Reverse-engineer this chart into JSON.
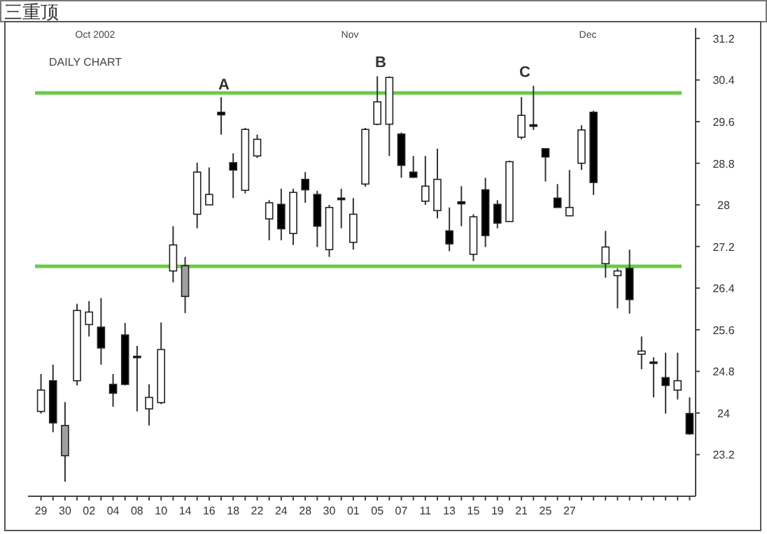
{
  "chart_data": {
    "type": "candlestick",
    "title": "三重顶",
    "subtitle": "DAILY CHART",
    "annotations": [
      "Oct 2002",
      "Nov",
      "Dec",
      "A",
      "B",
      "C"
    ],
    "categories": [
      "29",
      null,
      "30",
      null,
      "02",
      null,
      "04",
      null,
      "08",
      null,
      "10",
      null,
      "14",
      null,
      "16",
      null,
      "18",
      null,
      "22",
      null,
      "24",
      null,
      "28",
      null,
      "30",
      null,
      "01",
      null,
      "05",
      null,
      "07",
      null,
      "11",
      null,
      "13",
      null,
      "15",
      null,
      "19",
      null,
      "21",
      null,
      "25",
      null,
      "27",
      null,
      null,
      null,
      null,
      null,
      null,
      null,
      null,
      null,
      null
    ],
    "ohlc": [
      [
        24.03,
        24.75,
        23.99,
        24.44
      ],
      [
        24.62,
        24.93,
        23.63,
        23.81
      ],
      [
        23.18,
        24.21,
        22.68,
        23.76
      ],
      [
        24.62,
        26.1,
        24.53,
        25.97
      ],
      [
        25.7,
        26.15,
        25.47,
        25.94
      ],
      [
        25.65,
        26.21,
        24.93,
        25.25
      ],
      [
        24.55,
        24.75,
        24.12,
        24.38
      ],
      [
        25.5,
        25.73,
        24.53,
        24.55
      ],
      [
        25.09,
        25.29,
        24.03,
        25.07
      ],
      [
        24.08,
        24.55,
        23.76,
        24.3
      ],
      [
        24.2,
        25.74,
        24.17,
        25.22
      ],
      [
        26.73,
        27.59,
        26.51,
        27.23
      ],
      [
        26.83,
        27.0,
        25.92,
        26.24
      ],
      [
        27.82,
        28.81,
        27.55,
        28.63
      ],
      [
        28.0,
        28.72,
        28.0,
        28.2
      ],
      [
        29.78,
        30.07,
        29.35,
        29.73
      ],
      [
        28.81,
        28.99,
        28.13,
        28.67
      ],
      [
        28.28,
        29.48,
        28.22,
        29.45
      ],
      [
        28.94,
        29.35,
        28.9,
        29.26
      ],
      [
        27.73,
        28.09,
        27.32,
        28.04
      ],
      [
        28.01,
        28.31,
        27.32,
        27.54
      ],
      [
        27.45,
        28.31,
        27.23,
        28.24
      ],
      [
        28.49,
        28.63,
        28.04,
        28.29
      ],
      [
        28.2,
        28.27,
        27.19,
        27.59
      ],
      [
        27.14,
        28.0,
        27.0,
        27.95
      ],
      [
        28.13,
        28.31,
        27.55,
        28.1
      ],
      [
        27.28,
        28.13,
        27.14,
        27.82
      ],
      [
        28.4,
        29.48,
        28.35,
        29.45
      ],
      [
        29.55,
        30.47,
        29.53,
        29.98
      ],
      [
        29.55,
        30.47,
        28.94,
        30.45
      ],
      [
        29.36,
        29.39,
        28.52,
        28.76
      ],
      [
        28.63,
        28.94,
        28.52,
        28.53
      ],
      [
        28.07,
        28.94,
        28.0,
        28.36
      ],
      [
        27.89,
        29.08,
        27.74,
        28.49
      ],
      [
        27.5,
        27.95,
        27.11,
        27.25
      ],
      [
        28.06,
        28.36,
        27.59,
        28.02
      ],
      [
        27.05,
        27.82,
        26.92,
        27.77
      ],
      [
        28.29,
        28.52,
        27.19,
        27.41
      ],
      [
        28.01,
        28.09,
        27.55,
        27.65
      ],
      [
        27.68,
        28.85,
        27.68,
        28.83
      ],
      [
        29.3,
        30.07,
        29.26,
        29.72
      ],
      [
        29.54,
        30.29,
        29.44,
        29.51
      ],
      [
        29.08,
        29.08,
        28.45,
        28.92
      ],
      [
        28.13,
        28.4,
        27.95,
        27.95
      ],
      [
        27.79,
        28.67,
        27.79,
        27.95
      ],
      [
        28.8,
        29.53,
        28.67,
        29.44
      ],
      [
        29.78,
        29.81,
        28.19,
        28.43
      ],
      [
        26.87,
        27.5,
        26.6,
        27.19
      ],
      [
        26.64,
        26.78,
        26.01,
        26.73
      ],
      [
        26.78,
        27.14,
        25.91,
        26.18
      ],
      [
        25.13,
        25.47,
        24.84,
        25.19
      ],
      [
        24.98,
        25.07,
        24.3,
        24.96
      ],
      [
        24.68,
        25.16,
        23.99,
        24.53
      ],
      [
        24.44,
        25.16,
        24.26,
        24.62
      ],
      [
        23.99,
        24.3,
        23.58,
        23.6
      ]
    ],
    "colors": [
      "#ffffff",
      "#000000",
      "#a0a0a0",
      "#ffffff",
      "#ffffff",
      "#000000",
      "#000000",
      "#000000",
      "#000000",
      "#ffffff",
      "#ffffff",
      "#ffffff",
      "#a0a0a0",
      "#ffffff",
      "#ffffff",
      "#000000",
      "#000000",
      "#ffffff",
      "#ffffff",
      "#ffffff",
      "#000000",
      "#ffffff",
      "#000000",
      "#000000",
      "#ffffff",
      "#000000",
      "#ffffff",
      "#ffffff",
      "#ffffff",
      "#ffffff",
      "#000000",
      "#000000",
      "#ffffff",
      "#ffffff",
      "#000000",
      "#000000",
      "#ffffff",
      "#000000",
      "#000000",
      "#ffffff",
      "#ffffff",
      "#000000",
      "#000000",
      "#000000",
      "#ffffff",
      "#ffffff",
      "#000000",
      "#ffffff",
      "#ffffff",
      "#000000",
      "#ffffff",
      "#000000",
      "#000000",
      "#ffffff",
      "#000000"
    ],
    "ylim": [
      22.4,
      31.4
    ],
    "yticks": [
      23.2,
      24,
      24.8,
      25.6,
      26.4,
      27.2,
      28,
      28.8,
      29.6,
      30.4,
      31.2
    ],
    "ref_lines": [
      {
        "axis": "y",
        "value": 30.15,
        "color": "#66cc44"
      },
      {
        "axis": "y",
        "value": 26.82,
        "color": "#66cc44"
      }
    ]
  }
}
